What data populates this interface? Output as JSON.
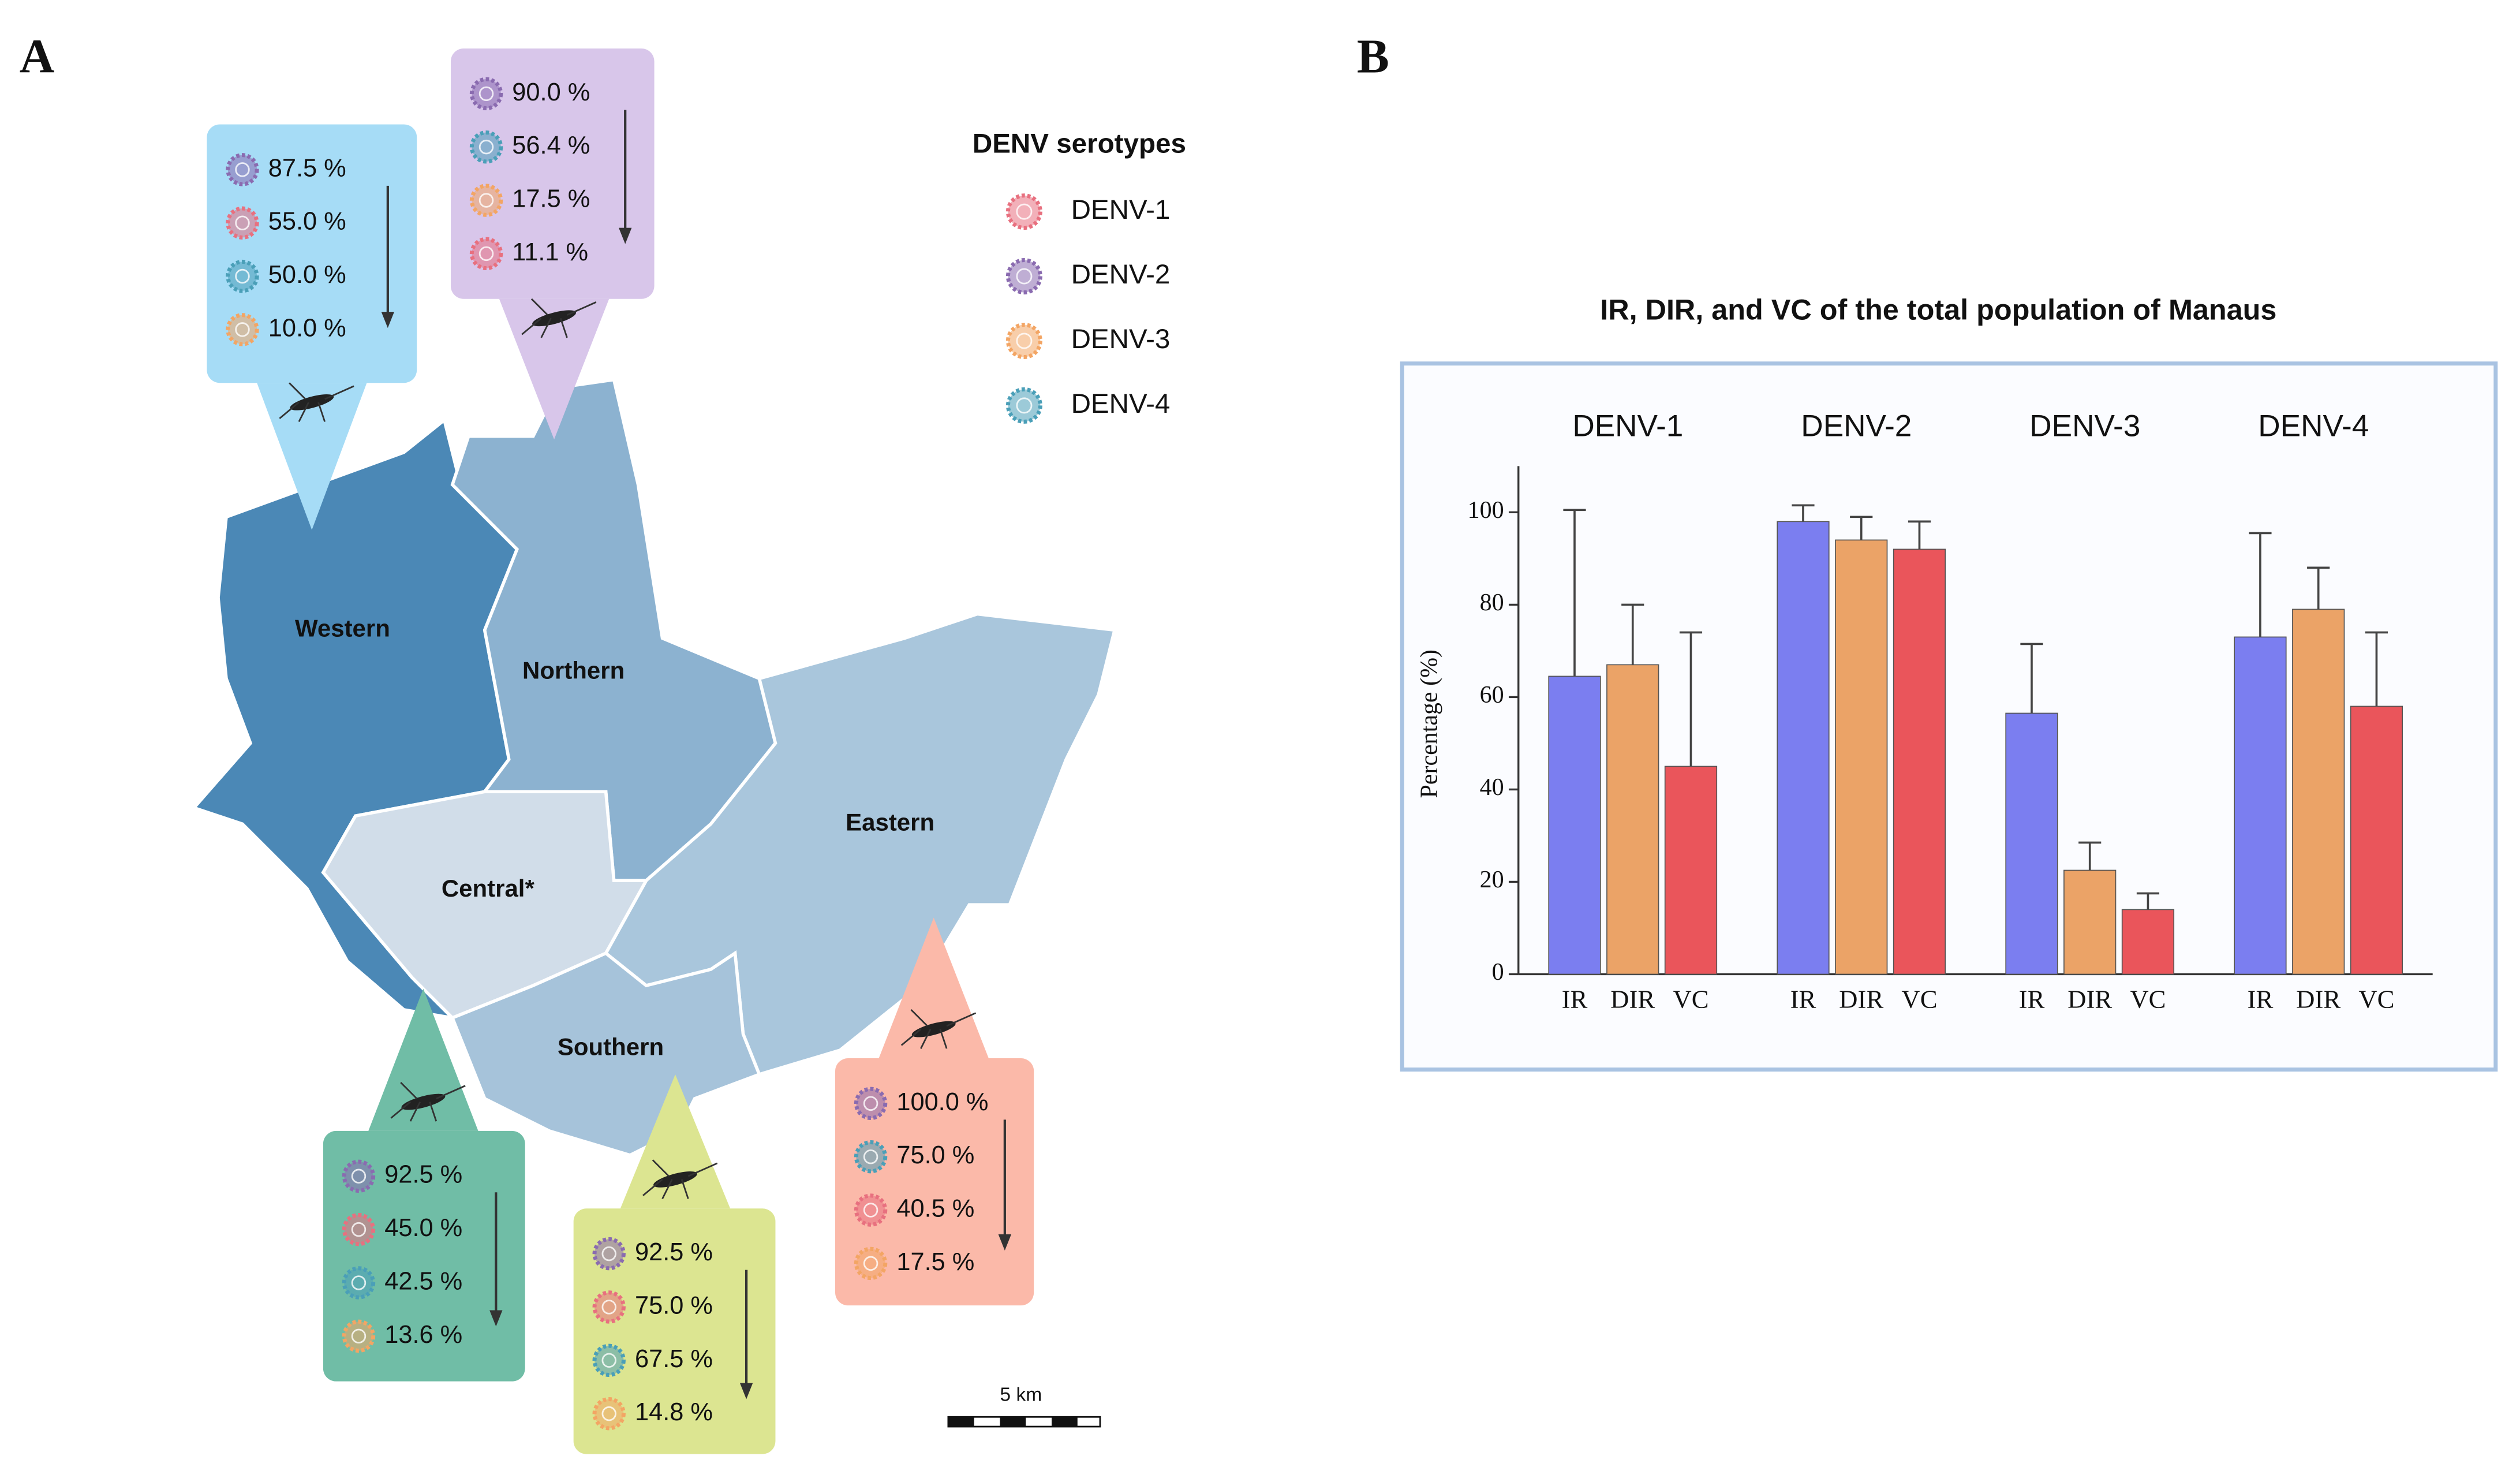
{
  "panels": [
    "A",
    "B"
  ],
  "map": {
    "legend_title": "DENV serotypes",
    "legend": [
      {
        "name": "DENV-1",
        "color": "#e8707f"
      },
      {
        "name": "DENV-2",
        "color": "#8a6bb0"
      },
      {
        "name": "DENV-3",
        "color": "#f3a564"
      },
      {
        "name": "DENV-4",
        "color": "#4a9fb8"
      }
    ],
    "regions": [
      {
        "name": "Western",
        "color": "#4b88b6"
      },
      {
        "name": "Northern",
        "color": "#8cb2d0"
      },
      {
        "name": "Eastern",
        "color": "#a9c6dc"
      },
      {
        "name": "Central*",
        "color": "#d1dde9"
      },
      {
        "name": "Southern",
        "color": "#a6c3da"
      }
    ],
    "callouts": [
      {
        "color": "#a6dcf6",
        "entries": [
          {
            "serotype": "DENV-2",
            "label": "87.5 %"
          },
          {
            "serotype": "DENV-1",
            "label": "55.0 %"
          },
          {
            "serotype": "DENV-4",
            "label": "50.0 %"
          },
          {
            "serotype": "DENV-3",
            "label": "10.0 %"
          }
        ]
      },
      {
        "color": "#d8c6ea",
        "entries": [
          {
            "serotype": "DENV-2",
            "label": "90.0 %"
          },
          {
            "serotype": "DENV-4",
            "label": "56.4 %"
          },
          {
            "serotype": "DENV-3",
            "label": "17.5 %"
          },
          {
            "serotype": "DENV-1",
            "label": "11.1 %"
          }
        ]
      },
      {
        "color": "#fbb9a9",
        "entries": [
          {
            "serotype": "DENV-2",
            "label": "100.0 %"
          },
          {
            "serotype": "DENV-4",
            "label": "75.0 %"
          },
          {
            "serotype": "DENV-1",
            "label": "40.5 %"
          },
          {
            "serotype": "DENV-3",
            "label": "17.5 %"
          }
        ]
      },
      {
        "color": "#70bda6",
        "entries": [
          {
            "serotype": "DENV-2",
            "label": "92.5 %"
          },
          {
            "serotype": "DENV-1",
            "label": "45.0 %"
          },
          {
            "serotype": "DENV-4",
            "label": "42.5 %"
          },
          {
            "serotype": "DENV-3",
            "label": "13.6 %"
          }
        ]
      },
      {
        "color": "#dce591",
        "entries": [
          {
            "serotype": "DENV-2",
            "label": "92.5 %"
          },
          {
            "serotype": "DENV-1",
            "label": "75.0 %"
          },
          {
            "serotype": "DENV-4",
            "label": "67.5 %"
          },
          {
            "serotype": "DENV-3",
            "label": "14.8 %"
          }
        ]
      }
    ],
    "scale_label": "5 km"
  },
  "chart_data": {
    "type": "bar",
    "title": "IR, DIR, and VC of the total population of Manaus",
    "ylabel": "Percentage (%)",
    "categories": [
      "DENV-1",
      "DENV-2",
      "DENV-3",
      "DENV-4"
    ],
    "series": [
      {
        "name": "IR",
        "color": "#7b7ef0",
        "values": [
          64.5,
          98,
          56.5,
          73
        ],
        "errors": [
          36,
          3.5,
          15,
          22.5
        ]
      },
      {
        "name": "DIR",
        "color": "#eba367",
        "values": [
          67,
          94,
          22.5,
          79
        ],
        "errors": [
          13,
          5,
          6,
          9
        ]
      },
      {
        "name": "VC",
        "color": "#ea555b",
        "values": [
          45,
          92,
          14,
          58
        ],
        "errors": [
          29,
          6,
          3.5,
          16
        ]
      }
    ],
    "ylim": [
      0,
      110
    ],
    "yticks": [
      0,
      20,
      40,
      60,
      80,
      100
    ]
  }
}
